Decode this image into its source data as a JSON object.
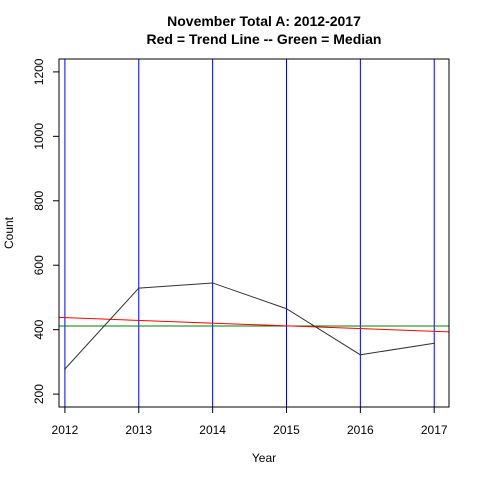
{
  "chart_data": {
    "type": "line",
    "title": [
      "November Total A: 2012-2017",
      "Red = Trend Line -- Green = Median"
    ],
    "xlabel": "Year",
    "ylabel": "Count",
    "x": [
      2012,
      2013,
      2014,
      2015,
      2016,
      2017
    ],
    "xlim": [
      2011.92,
      2017.2
    ],
    "ylim": [
      160,
      1240
    ],
    "yticks": [
      200,
      400,
      600,
      800,
      1000,
      1200
    ],
    "series": [
      {
        "values": [
          278,
          529,
          545,
          465,
          322,
          358
        ],
        "color": "#333333"
      }
    ],
    "trend_line": {
      "start": 438,
      "end": 393,
      "color": "#ff0000"
    },
    "median_line": {
      "value": 411.5,
      "color": "#008000"
    },
    "vertical_lines": {
      "x": [
        2012,
        2013,
        2014,
        2015,
        2016,
        2017
      ],
      "color": "#0000ff"
    }
  }
}
